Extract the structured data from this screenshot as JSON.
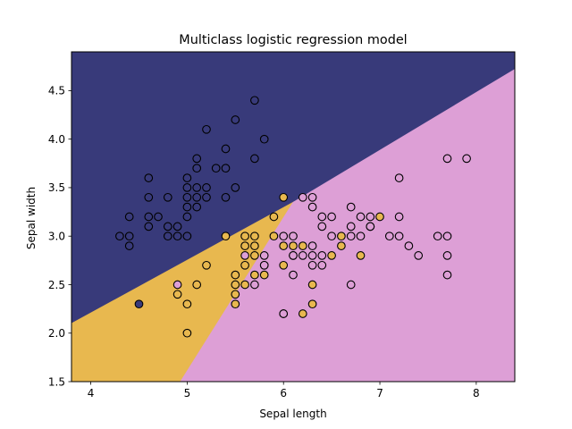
{
  "chart_data": {
    "type": "scatter",
    "title": "Multiclass logistic regression model",
    "xlabel": "Sepal length",
    "ylabel": "Sepal width",
    "xlim": [
      3.8,
      8.4
    ],
    "ylim": [
      1.5,
      4.9
    ],
    "xticks": [
      4,
      5,
      6,
      7,
      8
    ],
    "yticks": [
      1.5,
      2.0,
      2.5,
      3.0,
      3.5,
      4.0,
      4.5
    ],
    "xtick_labels": [
      "4",
      "5",
      "6",
      "7",
      "8"
    ],
    "ytick_labels": [
      "1.5",
      "2.0",
      "2.5",
      "3.0",
      "3.5",
      "4.0",
      "4.5"
    ],
    "grid": false,
    "regions": [
      {
        "class": 0,
        "color": "#383a7a",
        "polygon": [
          [
            3.8,
            2.1
          ],
          [
            6.1,
            3.35
          ],
          [
            8.4,
            4.72
          ],
          [
            8.4,
            4.9
          ],
          [
            3.8,
            4.9
          ]
        ]
      },
      {
        "class": 1,
        "color": "#e8b84f",
        "polygon": [
          [
            3.8,
            1.5
          ],
          [
            4.93,
            1.5
          ],
          [
            6.1,
            3.35
          ],
          [
            3.8,
            2.1
          ]
        ]
      },
      {
        "class": 2,
        "color": "#dd9fd6",
        "polygon": [
          [
            4.93,
            1.5
          ],
          [
            8.4,
            1.5
          ],
          [
            8.4,
            4.72
          ],
          [
            6.1,
            3.35
          ]
        ]
      }
    ],
    "series": [
      {
        "class": 0,
        "color": "#383a7a",
        "points": [
          [
            4.3,
            3.0
          ],
          [
            4.4,
            2.9
          ],
          [
            4.4,
            3.0
          ],
          [
            4.4,
            3.2
          ],
          [
            4.6,
            3.1
          ],
          [
            4.6,
            3.2
          ],
          [
            4.6,
            3.4
          ],
          [
            4.6,
            3.6
          ],
          [
            4.7,
            3.2
          ],
          [
            4.8,
            3.0
          ],
          [
            4.8,
            3.1
          ],
          [
            4.8,
            3.4
          ],
          [
            4.9,
            3.0
          ],
          [
            4.9,
            3.1
          ],
          [
            5.0,
            3.0
          ],
          [
            5.0,
            3.2
          ],
          [
            5.0,
            3.3
          ],
          [
            5.0,
            3.4
          ],
          [
            5.0,
            3.5
          ],
          [
            5.0,
            3.6
          ],
          [
            5.1,
            3.3
          ],
          [
            5.1,
            3.4
          ],
          [
            5.1,
            3.5
          ],
          [
            5.1,
            3.7
          ],
          [
            5.1,
            3.8
          ],
          [
            5.2,
            3.4
          ],
          [
            5.2,
            3.5
          ],
          [
            5.2,
            4.1
          ],
          [
            5.3,
            3.7
          ],
          [
            5.4,
            3.4
          ],
          [
            5.4,
            3.7
          ],
          [
            5.4,
            3.9
          ],
          [
            5.5,
            3.5
          ],
          [
            5.5,
            4.2
          ],
          [
            5.7,
            3.8
          ],
          [
            5.7,
            4.4
          ],
          [
            5.8,
            4.0
          ],
          [
            4.5,
            2.3
          ]
        ]
      },
      {
        "class": 1,
        "color": "#e8b84f",
        "points": [
          [
            4.9,
            2.4
          ],
          [
            5.0,
            2.0
          ],
          [
            5.0,
            2.3
          ],
          [
            5.1,
            2.5
          ],
          [
            5.2,
            2.7
          ],
          [
            5.4,
            3.0
          ],
          [
            5.5,
            2.3
          ],
          [
            5.5,
            2.4
          ],
          [
            5.5,
            2.5
          ],
          [
            5.5,
            2.6
          ],
          [
            5.6,
            2.5
          ],
          [
            5.6,
            2.7
          ],
          [
            5.6,
            2.9
          ],
          [
            5.6,
            3.0
          ],
          [
            5.7,
            2.6
          ],
          [
            5.7,
            2.8
          ],
          [
            5.7,
            2.9
          ],
          [
            5.7,
            3.0
          ],
          [
            5.8,
            2.6
          ],
          [
            5.8,
            2.7
          ],
          [
            5.9,
            3.0
          ],
          [
            5.9,
            3.2
          ],
          [
            6.0,
            2.2
          ],
          [
            6.0,
            2.7
          ],
          [
            6.0,
            2.9
          ],
          [
            6.0,
            3.4
          ],
          [
            6.1,
            2.8
          ],
          [
            6.1,
            2.9
          ],
          [
            6.2,
            2.2
          ],
          [
            6.2,
            2.9
          ],
          [
            6.3,
            2.3
          ],
          [
            6.3,
            2.5
          ],
          [
            6.5,
            2.8
          ],
          [
            6.6,
            2.9
          ],
          [
            6.6,
            3.0
          ],
          [
            6.8,
            2.8
          ],
          [
            7.0,
            3.2
          ]
        ]
      },
      {
        "class": 2,
        "color": "#dd9fd6",
        "points": [
          [
            4.9,
            2.5
          ],
          [
            5.6,
            2.8
          ],
          [
            5.7,
            2.5
          ],
          [
            5.8,
            2.8
          ],
          [
            6.0,
            2.2
          ],
          [
            6.0,
            3.0
          ],
          [
            6.1,
            2.6
          ],
          [
            6.1,
            3.0
          ],
          [
            6.2,
            2.8
          ],
          [
            6.2,
            3.4
          ],
          [
            6.3,
            2.7
          ],
          [
            6.3,
            2.8
          ],
          [
            6.3,
            2.9
          ],
          [
            6.3,
            3.3
          ],
          [
            6.3,
            3.4
          ],
          [
            6.4,
            2.7
          ],
          [
            6.4,
            2.8
          ],
          [
            6.4,
            3.1
          ],
          [
            6.4,
            3.2
          ],
          [
            6.5,
            3.0
          ],
          [
            6.5,
            3.2
          ],
          [
            6.7,
            2.5
          ],
          [
            6.7,
            3.0
          ],
          [
            6.7,
            3.1
          ],
          [
            6.7,
            3.3
          ],
          [
            6.8,
            3.0
          ],
          [
            6.8,
            3.2
          ],
          [
            6.9,
            3.1
          ],
          [
            6.9,
            3.2
          ],
          [
            7.1,
            3.0
          ],
          [
            7.2,
            3.0
          ],
          [
            7.2,
            3.2
          ],
          [
            7.2,
            3.6
          ],
          [
            7.3,
            2.9
          ],
          [
            7.4,
            2.8
          ],
          [
            7.6,
            3.0
          ],
          [
            7.7,
            2.6
          ],
          [
            7.7,
            2.8
          ],
          [
            7.7,
            3.0
          ],
          [
            7.7,
            3.8
          ],
          [
            7.9,
            3.8
          ],
          [
            5.8,
            2.7
          ],
          [
            6.1,
            2.8
          ],
          [
            6.9,
            3.1
          ]
        ]
      }
    ]
  }
}
